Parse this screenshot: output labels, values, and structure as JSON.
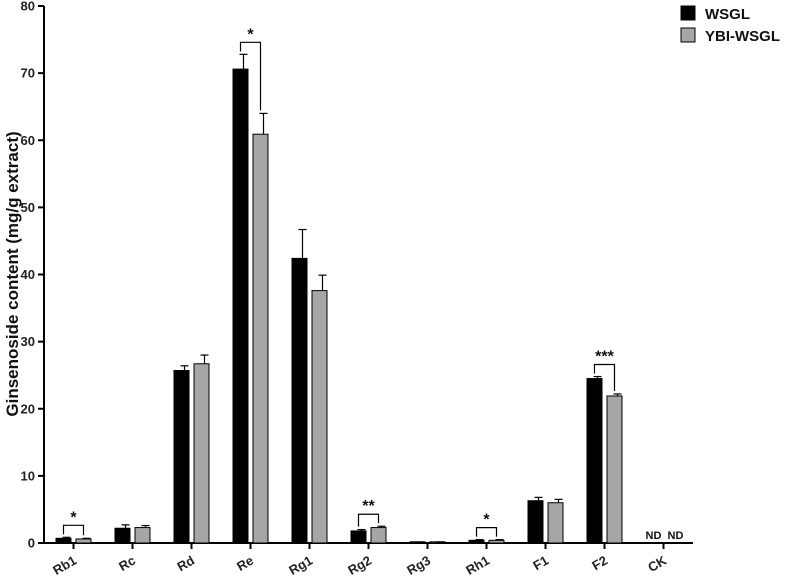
{
  "chart_data": {
    "type": "bar",
    "title": "",
    "xlabel": "",
    "ylabel": "Ginsenoside content (mg/g extract)",
    "ylim": [
      0,
      80
    ],
    "yticks": [
      0,
      10,
      20,
      30,
      40,
      50,
      60,
      70,
      80
    ],
    "categories": [
      "Rb1",
      "Rc",
      "Rd",
      "Re",
      "Rg1",
      "Rg2",
      "Rg3",
      "Rh1",
      "F1",
      "F2",
      "CK"
    ],
    "series": [
      {
        "name": "WSGL",
        "color": "#000000",
        "values": [
          0.7,
          2.2,
          25.7,
          70.6,
          42.4,
          1.8,
          0.1,
          0.4,
          6.3,
          24.5,
          null
        ],
        "errors": [
          0.15,
          0.5,
          0.7,
          2.2,
          4.3,
          0.2,
          0.05,
          0.1,
          0.5,
          0.3,
          null
        ]
      },
      {
        "name": "YBI-WSGL",
        "color": "#a6a6a6",
        "values": [
          0.6,
          2.3,
          26.7,
          60.9,
          37.6,
          2.3,
          0.1,
          0.4,
          6.0,
          21.9,
          null
        ],
        "errors": [
          0.1,
          0.3,
          1.3,
          3.1,
          2.3,
          0.2,
          0.05,
          0.1,
          0.5,
          0.3,
          null
        ]
      }
    ],
    "significance": [
      {
        "category": "Rb1",
        "label": "*"
      },
      {
        "category": "Re",
        "label": "*"
      },
      {
        "category": "Rg2",
        "label": "**"
      },
      {
        "category": "Rh1",
        "label": "*"
      },
      {
        "category": "F2",
        "label": "***"
      }
    ],
    "not_detected": {
      "category": "CK",
      "labels": [
        "ND",
        "ND"
      ]
    },
    "legend": {
      "position": "top-right",
      "entries": [
        "WSGL",
        "YBI-WSGL"
      ]
    },
    "grid": false
  }
}
